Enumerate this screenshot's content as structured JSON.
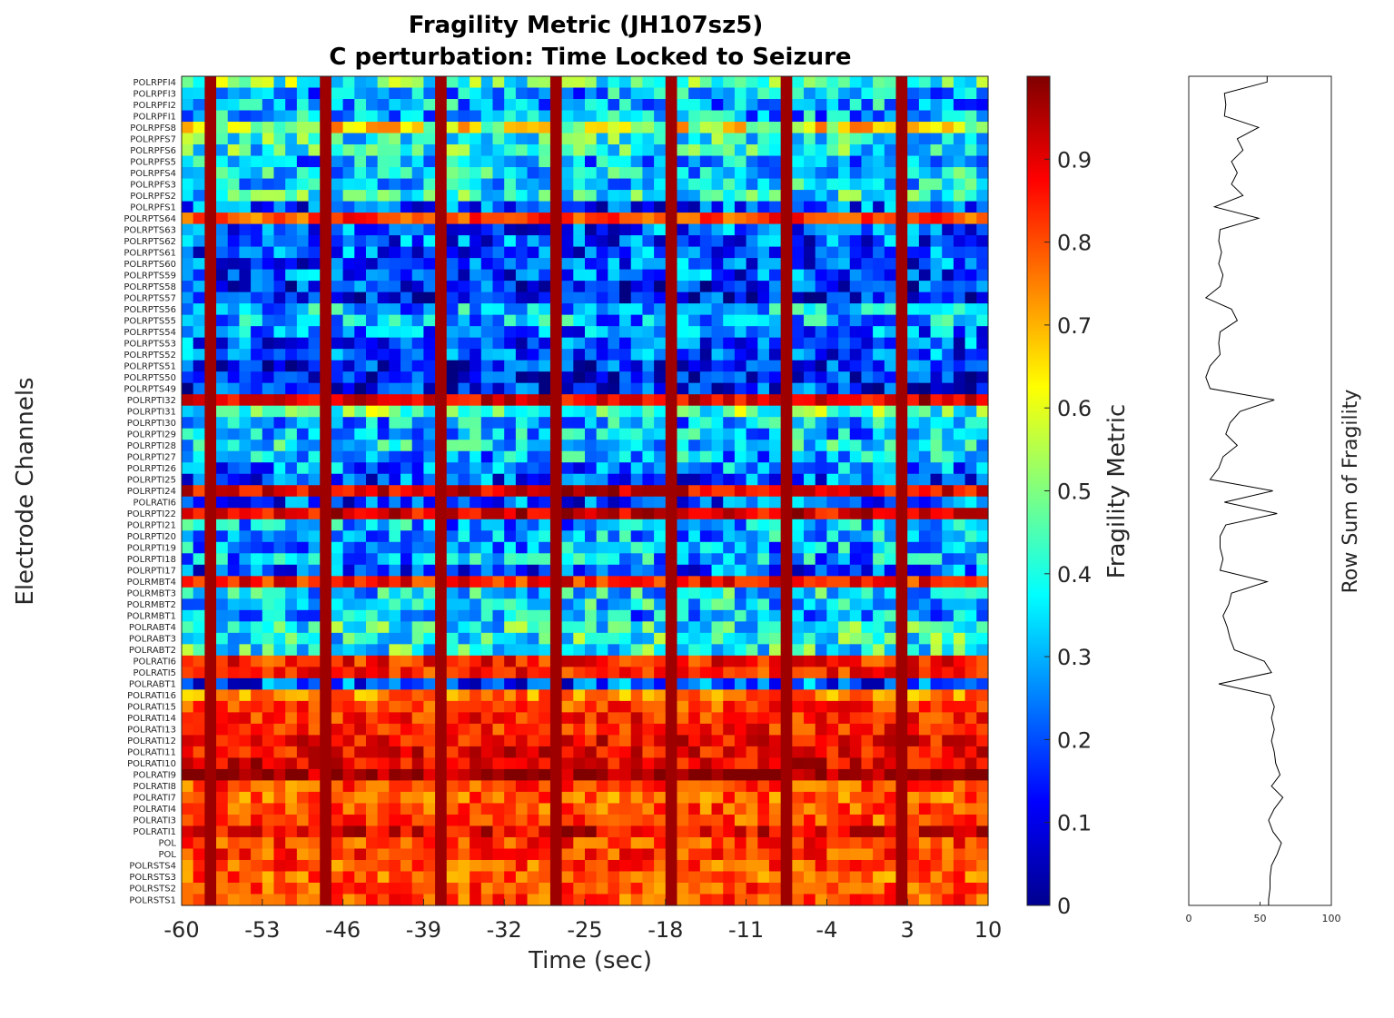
{
  "chart_data": [
    {
      "type": "heatmap",
      "title": [
        "Fragility Metric (JH107sz5)",
        "C perturbation:  Time Locked to Seizure"
      ],
      "xlabel": "Time (sec)",
      "ylabel": "Electrode Channels",
      "xlim": [
        -60,
        10
      ],
      "xticks": [
        "-60",
        "-53",
        "-46",
        "-39",
        "-32",
        "-25",
        "-18",
        "-11",
        "-4",
        "3",
        "10"
      ],
      "channels": [
        "POLRPFI4",
        "POLRPFI3",
        "POLRPFI2",
        "POLRPFI1",
        "POLRPFS8",
        "POLRPFS7",
        "POLRPFS6",
        "POLRPFS5",
        "POLRPFS4",
        "POLRPFS3",
        "POLRPFS2",
        "POLRPFS1",
        "POLRPTS64",
        "POLRPTS63",
        "POLRPTS62",
        "POLRPTS61",
        "POLRPTS60",
        "POLRPTS59",
        "POLRPTS58",
        "POLRPTS57",
        "POLRPTS56",
        "POLRPTS55",
        "POLRPTS54",
        "POLRPTS53",
        "POLRPTS52",
        "POLRPTS51",
        "POLRPTS50",
        "POLRPTS49",
        "POLRPTI32",
        "POLRPTI31",
        "POLRPTI30",
        "POLRPTI29",
        "POLRPTI28",
        "POLRPTI27",
        "POLRPTI26",
        "POLRPTI25",
        "POLRPTI24",
        "POLRATI6",
        "POLRPTI22",
        "POLRPTI21",
        "POLRPTI20",
        "POLRPTI19",
        "POLRPTI18",
        "POLRPTI17",
        "POLRMBT4",
        "POLRMBT3",
        "POLRMBT2",
        "POLRMBT1",
        "POLRABT4",
        "POLRABT3",
        "POLRABT2",
        "POLRATI6",
        "POLRATI5",
        "POLRABT1",
        "POLRATI16",
        "POLRATI15",
        "POLRATI14",
        "POLRATI13",
        "POLRATI12",
        "POLRATI11",
        "POLRATI10",
        "POLRATI9",
        "POLRATI8",
        "POLRATI7",
        "POLRATI4",
        "POLRATI3",
        "POLRATI1",
        "POL",
        "POL",
        "POLRSTS4",
        "POLRSTS3",
        "POLRSTS2",
        "POLRSTS1"
      ],
      "channel_levels": [
        0.45,
        0.3,
        0.3,
        0.3,
        0.6,
        0.4,
        0.4,
        0.3,
        0.35,
        0.35,
        0.4,
        0.2,
        0.8,
        0.2,
        0.2,
        0.2,
        0.2,
        0.2,
        0.15,
        0.12,
        0.3,
        0.3,
        0.25,
        0.2,
        0.2,
        0.15,
        0.15,
        0.15,
        0.9,
        0.45,
        0.3,
        0.3,
        0.35,
        0.3,
        0.25,
        0.2,
        0.9,
        0.2,
        0.9,
        0.3,
        0.3,
        0.3,
        0.3,
        0.2,
        0.85,
        0.35,
        0.35,
        0.3,
        0.4,
        0.4,
        0.4,
        0.85,
        0.85,
        0.2,
        0.75,
        0.82,
        0.85,
        0.85,
        0.88,
        0.88,
        0.9,
        0.97,
        0.8,
        0.78,
        0.8,
        0.8,
        0.9,
        0.82,
        0.82,
        0.8,
        0.78,
        0.8,
        0.8
      ],
      "hot_times": [
        -58,
        -48,
        -38,
        -28,
        -18,
        -8,
        2
      ],
      "colorbar": {
        "label": "Fragility Metric",
        "range": [
          0,
          1
        ],
        "ticks": [
          "0",
          "0.1",
          "0.2",
          "0.3",
          "0.4",
          "0.5",
          "0.6",
          "0.7",
          "0.8",
          "0.9"
        ],
        "colormap": "jet"
      }
    },
    {
      "type": "line",
      "xlabel": "Row Sum of Fragility",
      "xlim": [
        0,
        100
      ],
      "xticks": [
        "0",
        "50",
        "100"
      ],
      "row_sums": [
        55,
        25,
        26,
        25,
        49,
        34,
        38,
        30,
        34,
        30,
        38,
        18,
        49,
        22,
        21,
        23,
        21,
        24,
        22,
        12,
        30,
        34,
        22,
        21,
        22,
        15,
        12,
        15,
        60,
        36,
        29,
        26,
        34,
        24,
        21,
        15,
        59,
        25,
        62,
        26,
        22,
        22,
        24,
        22,
        55,
        30,
        28,
        24,
        27,
        29,
        32,
        53,
        58,
        21,
        57,
        60,
        58,
        60,
        58,
        60,
        61,
        64,
        58,
        66,
        60,
        56,
        59,
        65,
        62,
        58,
        57,
        57,
        56
      ]
    }
  ]
}
